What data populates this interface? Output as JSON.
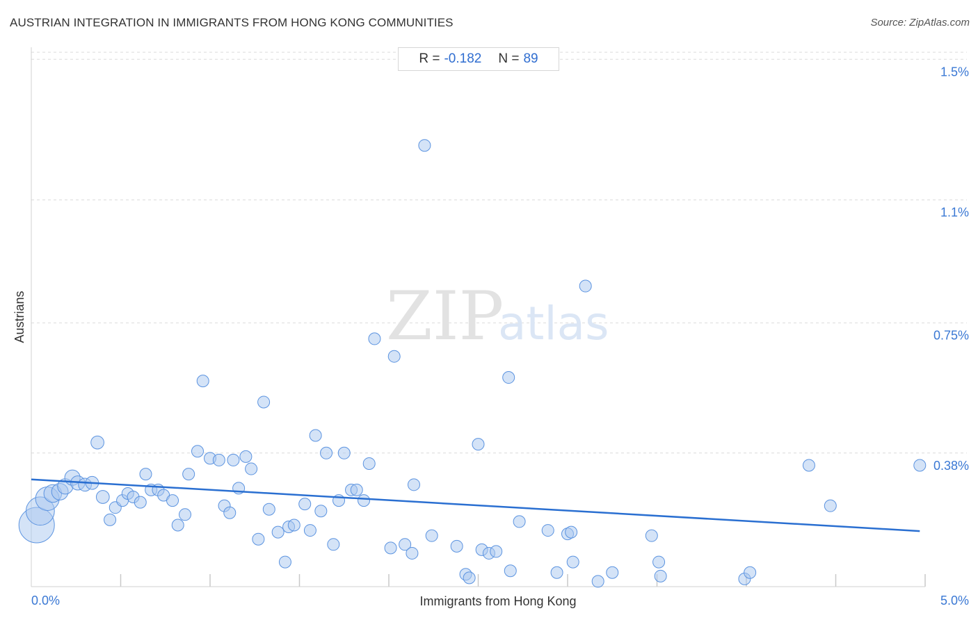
{
  "title": "AUSTRIAN INTEGRATION IN IMMIGRANTS FROM HONG KONG COMMUNITIES",
  "source": "Source: ZipAtlas.com",
  "stats": {
    "r_label": "R =",
    "r_value": "-0.182",
    "n_label": "N =",
    "n_value": "89"
  },
  "watermark": {
    "zip": "ZIP",
    "atlas": "atlas"
  },
  "colors": {
    "accent": "#2f6dd0",
    "point_fill": "#a9c8f0",
    "point_stroke": "#5b93e0",
    "trend": "#2a6fd1",
    "grid": "#dcdcdc"
  },
  "chart_data": {
    "type": "scatter",
    "title": "AUSTRIAN INTEGRATION IN IMMIGRANTS FROM HONG KONG COMMUNITIES",
    "xlabel": "Immigrants from Hong Kong",
    "ylabel": "Austrians",
    "xlim": [
      0,
      5.0
    ],
    "ylim": [
      0,
      1.55
    ],
    "x_tick_labels": [
      {
        "value": 0,
        "label": "0.0%"
      },
      {
        "value": 5.0,
        "label": "5.0%"
      }
    ],
    "y_ticks": [
      {
        "value": 0.38,
        "label": "0.38%"
      },
      {
        "value": 0.75,
        "label": "0.75%"
      },
      {
        "value": 1.1,
        "label": "1.1%"
      },
      {
        "value": 1.5,
        "label": "1.5%"
      }
    ],
    "x_minor_ticks": [
      0.5,
      1.0,
      1.5,
      2.0,
      2.5,
      3.0,
      3.5,
      4.0,
      4.5,
      5.0
    ],
    "grid": true,
    "trend": {
      "x": [
        0,
        4.97
      ],
      "y": [
        0.305,
        0.158
      ]
    },
    "points": [
      {
        "x": 0.03,
        "y": 0.175,
        "s": 3
      },
      {
        "x": 0.05,
        "y": 0.215,
        "s": 2.4
      },
      {
        "x": 0.09,
        "y": 0.25,
        "s": 2
      },
      {
        "x": 0.12,
        "y": 0.265,
        "s": 1.5
      },
      {
        "x": 0.16,
        "y": 0.27,
        "s": 1.4
      },
      {
        "x": 0.19,
        "y": 0.285,
        "s": 1.3
      },
      {
        "x": 0.23,
        "y": 0.31,
        "s": 1.3
      },
      {
        "x": 0.26,
        "y": 0.295,
        "s": 1.2
      },
      {
        "x": 0.3,
        "y": 0.29,
        "s": 1.1
      },
      {
        "x": 0.34,
        "y": 0.295,
        "s": 1.1
      },
      {
        "x": 0.37,
        "y": 0.41,
        "s": 1.1
      },
      {
        "x": 0.4,
        "y": 0.255,
        "s": 1.1
      },
      {
        "x": 0.44,
        "y": 0.19,
        "s": 1
      },
      {
        "x": 0.47,
        "y": 0.225,
        "s": 1
      },
      {
        "x": 0.51,
        "y": 0.245,
        "s": 1
      },
      {
        "x": 0.54,
        "y": 0.265,
        "s": 1
      },
      {
        "x": 0.57,
        "y": 0.255,
        "s": 1
      },
      {
        "x": 0.61,
        "y": 0.24,
        "s": 1
      },
      {
        "x": 0.64,
        "y": 0.32,
        "s": 1
      },
      {
        "x": 0.67,
        "y": 0.275,
        "s": 1
      },
      {
        "x": 0.71,
        "y": 0.275,
        "s": 1
      },
      {
        "x": 0.74,
        "y": 0.26,
        "s": 1
      },
      {
        "x": 0.79,
        "y": 0.245,
        "s": 1
      },
      {
        "x": 0.82,
        "y": 0.175,
        "s": 1
      },
      {
        "x": 0.86,
        "y": 0.205,
        "s": 1
      },
      {
        "x": 0.88,
        "y": 0.32,
        "s": 1
      },
      {
        "x": 0.93,
        "y": 0.385,
        "s": 1
      },
      {
        "x": 0.96,
        "y": 0.585,
        "s": 1
      },
      {
        "x": 1.0,
        "y": 0.365,
        "s": 1
      },
      {
        "x": 1.05,
        "y": 0.36,
        "s": 1
      },
      {
        "x": 1.08,
        "y": 0.23,
        "s": 1
      },
      {
        "x": 1.11,
        "y": 0.21,
        "s": 1
      },
      {
        "x": 1.13,
        "y": 0.36,
        "s": 1
      },
      {
        "x": 1.16,
        "y": 0.28,
        "s": 1
      },
      {
        "x": 1.2,
        "y": 0.37,
        "s": 1
      },
      {
        "x": 1.23,
        "y": 0.335,
        "s": 1
      },
      {
        "x": 1.27,
        "y": 0.135,
        "s": 1
      },
      {
        "x": 1.3,
        "y": 0.525,
        "s": 1
      },
      {
        "x": 1.33,
        "y": 0.22,
        "s": 1
      },
      {
        "x": 1.38,
        "y": 0.155,
        "s": 1
      },
      {
        "x": 1.42,
        "y": 0.07,
        "s": 1
      },
      {
        "x": 1.44,
        "y": 0.17,
        "s": 1
      },
      {
        "x": 1.47,
        "y": 0.175,
        "s": 1
      },
      {
        "x": 1.53,
        "y": 0.235,
        "s": 1
      },
      {
        "x": 1.56,
        "y": 0.16,
        "s": 1
      },
      {
        "x": 1.59,
        "y": 0.43,
        "s": 1
      },
      {
        "x": 1.62,
        "y": 0.215,
        "s": 1
      },
      {
        "x": 1.65,
        "y": 0.38,
        "s": 1
      },
      {
        "x": 1.69,
        "y": 0.12,
        "s": 1
      },
      {
        "x": 1.72,
        "y": 0.245,
        "s": 1
      },
      {
        "x": 1.75,
        "y": 0.38,
        "s": 1
      },
      {
        "x": 1.79,
        "y": 0.275,
        "s": 1
      },
      {
        "x": 1.82,
        "y": 0.275,
        "s": 1
      },
      {
        "x": 1.86,
        "y": 0.245,
        "s": 1
      },
      {
        "x": 1.89,
        "y": 0.35,
        "s": 1
      },
      {
        "x": 1.92,
        "y": 0.705,
        "s": 1
      },
      {
        "x": 2.01,
        "y": 0.11,
        "s": 1
      },
      {
        "x": 2.03,
        "y": 0.655,
        "s": 1
      },
      {
        "x": 2.09,
        "y": 0.12,
        "s": 1
      },
      {
        "x": 2.13,
        "y": 0.095,
        "s": 1
      },
      {
        "x": 2.14,
        "y": 0.29,
        "s": 1
      },
      {
        "x": 2.2,
        "y": 1.255,
        "s": 1
      },
      {
        "x": 2.24,
        "y": 0.145,
        "s": 1
      },
      {
        "x": 2.38,
        "y": 0.115,
        "s": 1
      },
      {
        "x": 2.43,
        "y": 0.035,
        "s": 1
      },
      {
        "x": 2.45,
        "y": 0.025,
        "s": 1
      },
      {
        "x": 2.5,
        "y": 0.405,
        "s": 1
      },
      {
        "x": 2.52,
        "y": 0.105,
        "s": 1
      },
      {
        "x": 2.56,
        "y": 0.095,
        "s": 1
      },
      {
        "x": 2.6,
        "y": 0.1,
        "s": 1
      },
      {
        "x": 2.68,
        "y": 0.045,
        "s": 1
      },
      {
        "x": 2.67,
        "y": 0.595,
        "s": 1
      },
      {
        "x": 2.73,
        "y": 0.185,
        "s": 1
      },
      {
        "x": 2.89,
        "y": 0.16,
        "s": 1
      },
      {
        "x": 2.94,
        "y": 0.04,
        "s": 1
      },
      {
        "x": 3.0,
        "y": 0.15,
        "s": 1
      },
      {
        "x": 3.02,
        "y": 0.155,
        "s": 1
      },
      {
        "x": 3.03,
        "y": 0.07,
        "s": 1
      },
      {
        "x": 3.1,
        "y": 0.855,
        "s": 1
      },
      {
        "x": 3.17,
        "y": 0.015,
        "s": 1
      },
      {
        "x": 3.25,
        "y": 0.04,
        "s": 1
      },
      {
        "x": 3.47,
        "y": 0.145,
        "s": 1
      },
      {
        "x": 3.51,
        "y": 0.07,
        "s": 1
      },
      {
        "x": 3.52,
        "y": 0.03,
        "s": 1
      },
      {
        "x": 3.99,
        "y": 0.022,
        "s": 1
      },
      {
        "x": 4.02,
        "y": 0.04,
        "s": 1
      },
      {
        "x": 4.35,
        "y": 0.345,
        "s": 1
      },
      {
        "x": 4.47,
        "y": 0.23,
        "s": 1
      },
      {
        "x": 4.97,
        "y": 0.345,
        "s": 1
      }
    ]
  }
}
